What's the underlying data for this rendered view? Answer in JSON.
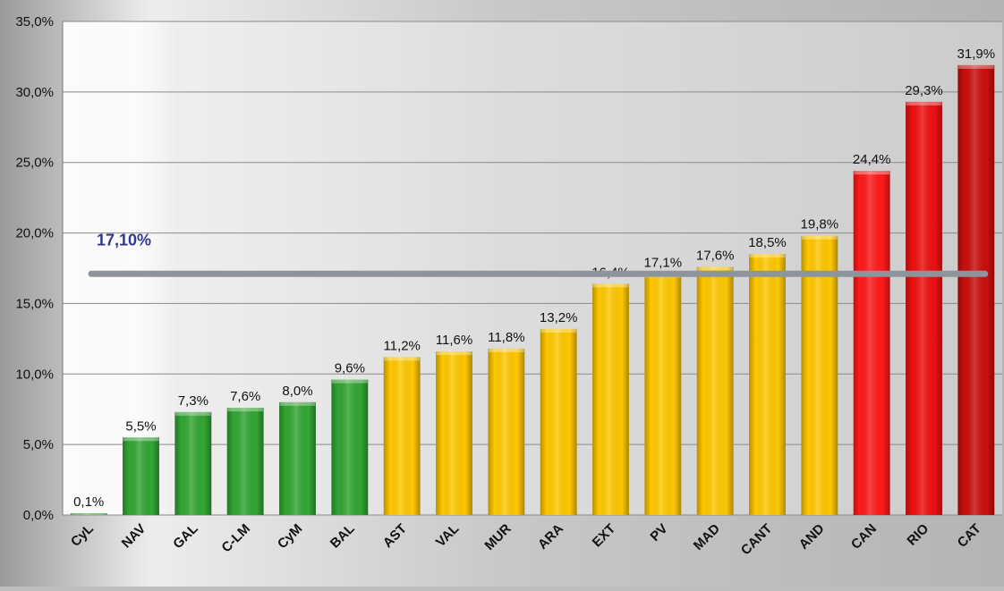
{
  "chart_data": {
    "type": "bar",
    "categories": [
      "CyL",
      "NAV",
      "GAL",
      "C-LM",
      "CyM",
      "BAL",
      "AST",
      "VAL",
      "MUR",
      "ARA",
      "EXT",
      "PV",
      "MAD",
      "CANT",
      "AND",
      "CAN",
      "RIO",
      "CAT"
    ],
    "values": [
      0.1,
      5.5,
      7.3,
      7.6,
      8.0,
      9.6,
      11.2,
      11.6,
      11.8,
      13.2,
      16.4,
      17.1,
      17.6,
      18.5,
      19.8,
      24.4,
      29.3,
      31.9
    ],
    "data_labels": [
      "0,1%",
      "5,5%",
      "7,3%",
      "7,6%",
      "8,0%",
      "9,6%",
      "11,2%",
      "11,6%",
      "11,8%",
      "13,2%",
      "16,4%",
      "17,1%",
      "17,6%",
      "18,5%",
      "19,8%",
      "24,4%",
      "29,3%",
      "31,9%"
    ],
    "bar_colors": [
      "#33a633",
      "#33a633",
      "#33a633",
      "#33a633",
      "#33a633",
      "#33a633",
      "#ffc800",
      "#ffc800",
      "#ffc800",
      "#ffc800",
      "#ffc800",
      "#ffc800",
      "#ffc800",
      "#ffc800",
      "#ffc800",
      "#ff1a1a",
      "#ee1111",
      "#cc0e0e"
    ],
    "ylim": [
      0,
      35
    ],
    "yticks": [
      0,
      5,
      10,
      15,
      20,
      25,
      30,
      35
    ],
    "ytick_labels": [
      "0,0%",
      "5,0%",
      "10,0%",
      "15,0%",
      "20,0%",
      "25,0%",
      "30,0%",
      "35,0%"
    ],
    "grid": true,
    "reference_line": {
      "value": 17.1,
      "label": "17,10%",
      "color": "#8e949c",
      "label_color": "#2e3a8c"
    },
    "title": "",
    "xlabel": "",
    "ylabel": ""
  }
}
